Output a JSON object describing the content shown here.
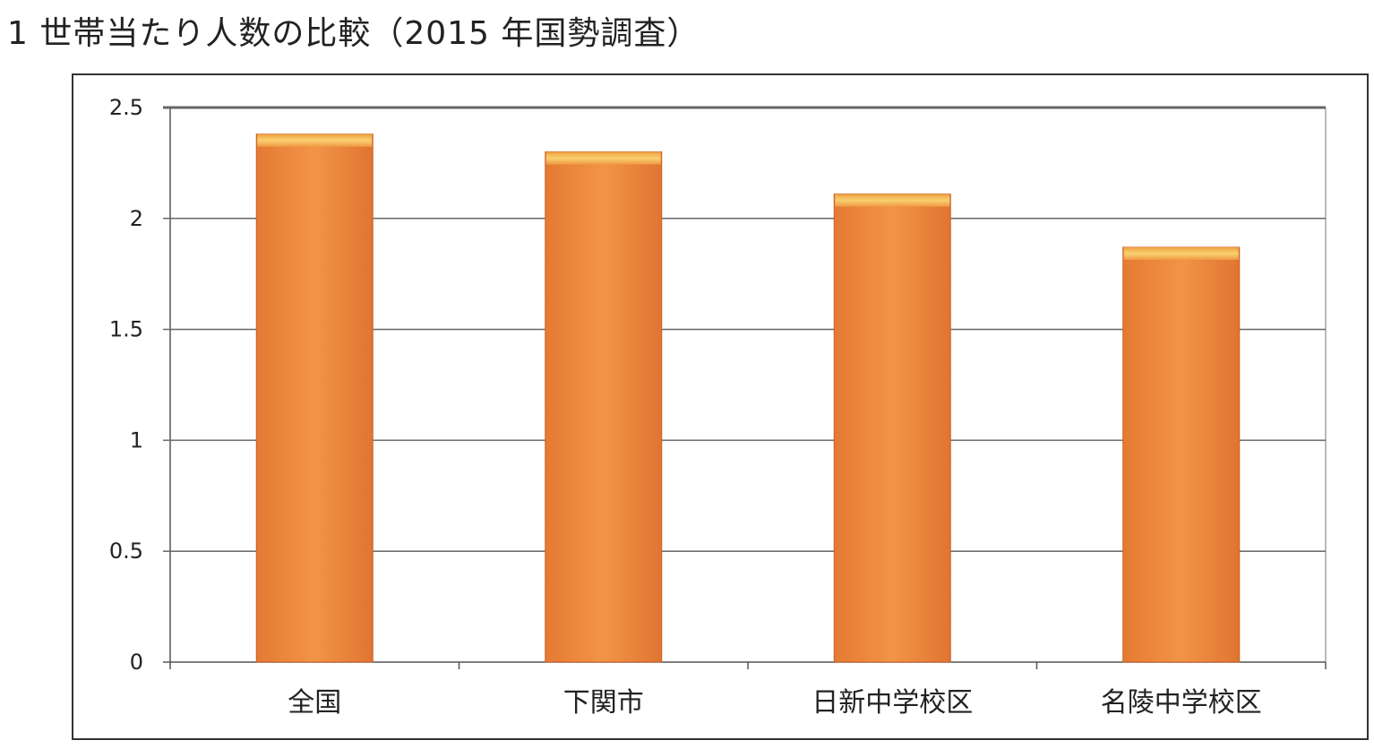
{
  "chart_data": {
    "type": "bar",
    "title": "1 世帯当たり人数の比較（2015 年国勢調査）",
    "categories": [
      "全国",
      "下関市",
      "日新中学校区",
      "名陵中学校区"
    ],
    "values": [
      2.38,
      2.3,
      2.11,
      1.87
    ],
    "xlabel": "",
    "ylabel": "",
    "ylim": [
      0,
      2.5
    ],
    "yticks": [
      "0",
      "0.5",
      "1",
      "1.5",
      "2",
      "2.5"
    ],
    "grid": true,
    "legend": "none",
    "colors": {
      "bar": "#ef8a3c",
      "bar_top": "#f7c257",
      "bar_edge": "#c8602a"
    }
  }
}
